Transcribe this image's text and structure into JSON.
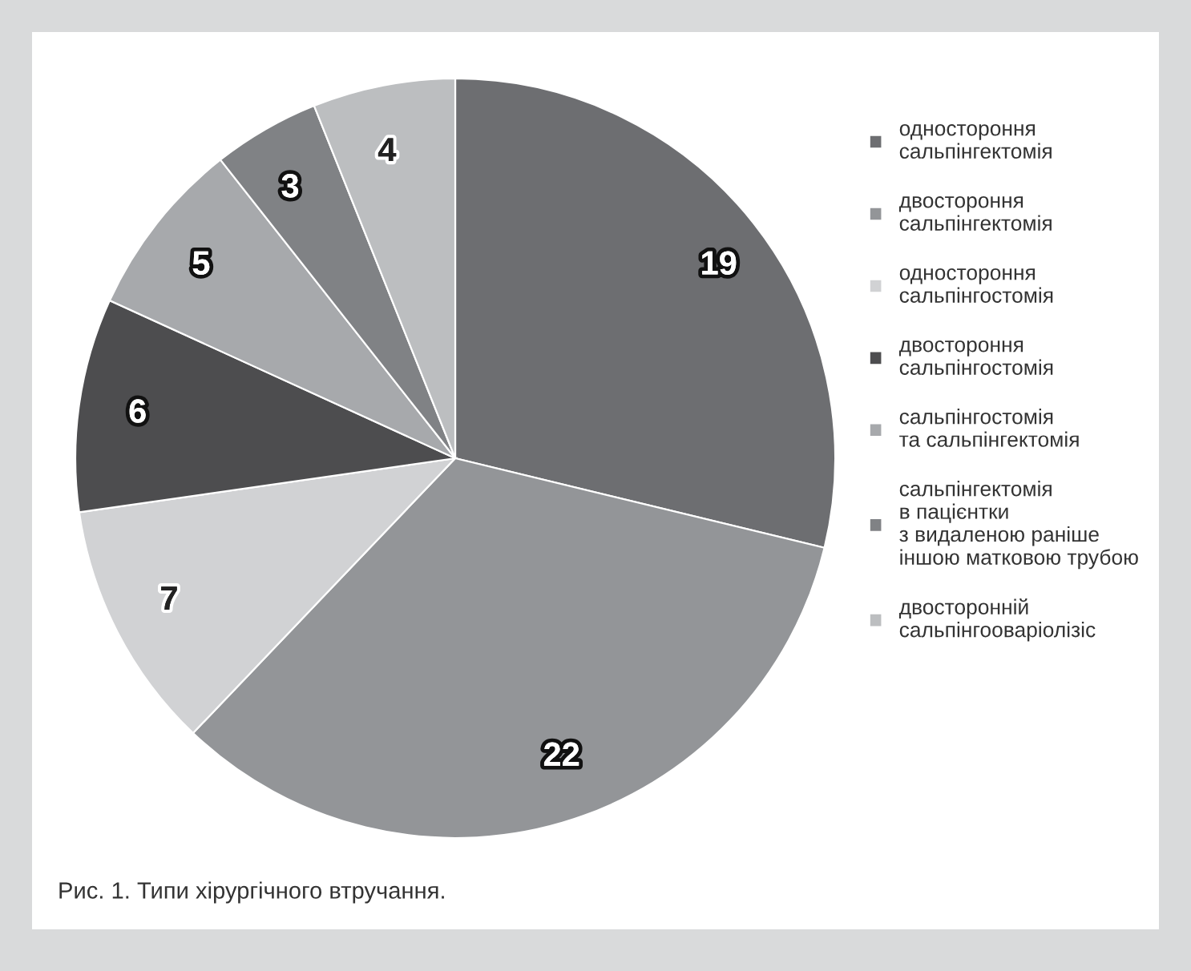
{
  "chart_data": {
    "type": "pie",
    "categories": [
      "одностороння\nсальпінгектомія",
      "двостороння\nсальпінгектомія",
      "одностороння\nсальпінгостомія",
      "двостороння\nсальпінгостомія",
      "сальпінгостомія\nта сальпінгектомія",
      "сальпінгектомія\nв пацієнтки\nз видаленою раніше\nіншою матковою трубою",
      "двосторонній\nсальпінгооваріолізіс"
    ],
    "values": [
      19,
      22,
      7,
      6,
      5,
      3,
      4
    ],
    "colors": [
      "#6d6e71",
      "#939598",
      "#d1d2d4",
      "#4d4d4f",
      "#a7a9ac",
      "#808285",
      "#bcbec0"
    ],
    "data_labels": true,
    "legend": "right",
    "annotations": [
      "Рис. 1. Типи хірургічного втручання."
    ]
  }
}
